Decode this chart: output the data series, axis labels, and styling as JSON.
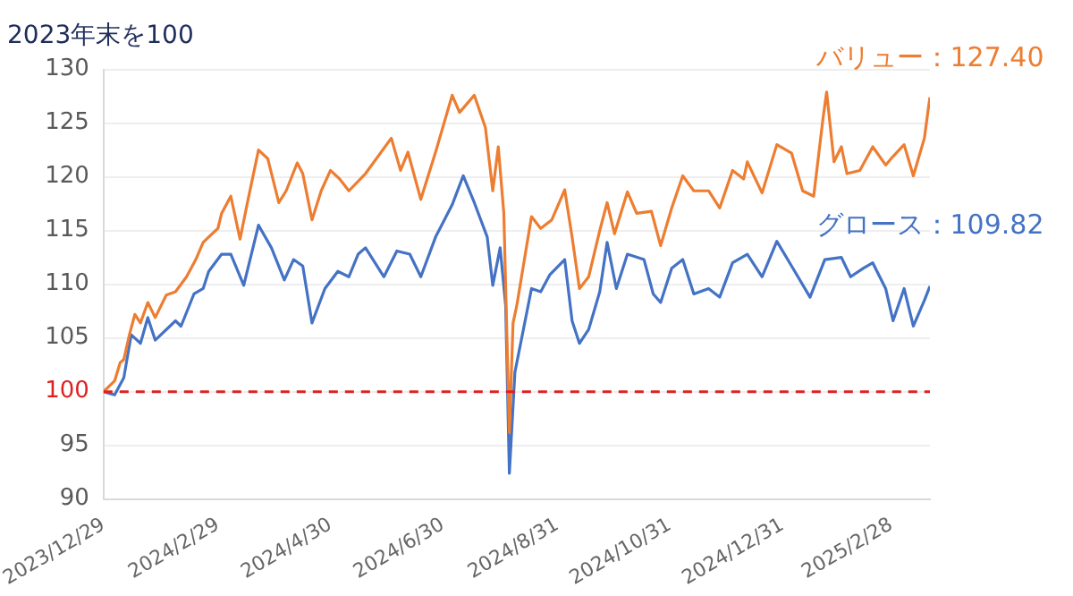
{
  "chart_data": {
    "type": "line",
    "title": "2023年末を100",
    "xlim": [
      "2023-12-29",
      "2025-03-21"
    ],
    "xticks": [
      {
        "value": "2023-12-29",
        "label": "2023/12/29"
      },
      {
        "value": "2024-02-29",
        "label": "2024/2/29"
      },
      {
        "value": "2024-04-30",
        "label": "2024/4/30"
      },
      {
        "value": "2024-06-30",
        "label": "2024/6/30"
      },
      {
        "value": "2024-08-31",
        "label": "2024/8/31"
      },
      {
        "value": "2024-10-31",
        "label": "2024/10/31"
      },
      {
        "value": "2024-12-31",
        "label": "2024/12/31"
      },
      {
        "value": "2025-02-28",
        "label": "2025/2/28"
      }
    ],
    "ylim": [
      90,
      130
    ],
    "yticks": [
      90,
      95,
      100,
      105,
      110,
      115,
      120,
      125,
      130
    ],
    "grid": "y",
    "legend": false,
    "marker": "none",
    "line_style": "solid",
    "ref_lines": [
      {
        "axis": "y",
        "value": 100,
        "color": "#e02020",
        "line_style": "dashed"
      }
    ],
    "series": [
      {
        "color": "#ed7d31",
        "x": [
          "2023-12-29",
          "2024-01-04",
          "2024-01-07",
          "2024-01-09",
          "2024-01-12",
          "2024-01-15",
          "2024-01-18",
          "2024-01-22",
          "2024-01-26",
          "2024-02-01",
          "2024-02-06",
          "2024-02-12",
          "2024-02-17",
          "2024-02-21",
          "2024-02-24",
          "2024-02-29",
          "2024-03-02",
          "2024-03-07",
          "2024-03-12",
          "2024-03-16",
          "2024-03-22",
          "2024-03-27",
          "2024-04-02",
          "2024-04-06",
          "2024-04-12",
          "2024-04-15",
          "2024-04-20",
          "2024-04-25",
          "2024-04-30",
          "2024-05-05",
          "2024-05-10",
          "2024-05-19",
          "2024-06-02",
          "2024-06-07",
          "2024-06-11",
          "2024-06-18",
          "2024-06-26",
          "2024-07-05",
          "2024-07-09",
          "2024-07-17",
          "2024-07-23",
          "2024-07-27",
          "2024-07-30",
          "2024-08-02",
          "2024-08-05",
          "2024-08-07",
          "2024-08-09",
          "2024-08-17",
          "2024-08-22",
          "2024-08-28",
          "2024-09-04",
          "2024-09-08",
          "2024-09-12",
          "2024-09-17",
          "2024-09-23",
          "2024-09-27",
          "2024-10-01",
          "2024-10-08",
          "2024-10-13",
          "2024-10-21",
          "2024-10-26",
          "2024-11-01",
          "2024-11-07",
          "2024-11-13",
          "2024-11-21",
          "2024-11-27",
          "2024-12-04",
          "2024-12-10",
          "2024-12-12",
          "2024-12-20",
          "2024-12-28",
          "2025-01-05",
          "2025-01-11",
          "2025-01-17",
          "2025-01-22",
          "2025-01-24",
          "2025-01-28",
          "2025-02-01",
          "2025-02-04",
          "2025-02-11",
          "2025-02-18",
          "2025-02-25",
          "2025-03-01",
          "2025-03-07",
          "2025-03-12",
          "2025-03-18",
          "2025-03-20",
          "2025-03-21"
        ],
        "values": [
          100,
          101,
          102.7,
          103,
          105.3,
          107.2,
          106.4,
          108.3,
          106.9,
          109,
          109.3,
          110.7,
          112.3,
          113.9,
          114.4,
          115.2,
          116.6,
          118.2,
          114.2,
          117.6,
          122.5,
          121.7,
          117.6,
          118.7,
          121.3,
          120.3,
          116,
          118.7,
          120.6,
          119.8,
          118.7,
          120.3,
          123.6,
          120.6,
          122.3,
          117.9,
          122.3,
          127.6,
          126,
          127.6,
          124.6,
          118.7,
          122.8,
          116.6,
          96.2,
          106.4,
          108,
          116.3,
          115.2,
          116,
          118.8,
          114.4,
          109.6,
          110.7,
          115,
          117.6,
          114.7,
          118.6,
          116.6,
          116.8,
          113.6,
          117.1,
          120.1,
          118.7,
          118.7,
          117.1,
          120.6,
          119.8,
          121.4,
          118.5,
          123,
          122.2,
          118.7,
          118.2,
          125.4,
          127.9,
          121.4,
          122.8,
          120.3,
          120.6,
          122.8,
          121.1,
          121.9,
          123,
          120.1,
          123.6,
          126.2,
          127.4
        ]
      },
      {
        "color": "#4472c4",
        "x": [
          "2023-12-29",
          "2024-01-04",
          "2024-01-09",
          "2024-01-13",
          "2024-01-18",
          "2024-01-22",
          "2024-01-26",
          "2024-02-06",
          "2024-02-09",
          "2024-02-16",
          "2024-02-21",
          "2024-02-24",
          "2024-03-02",
          "2024-03-07",
          "2024-03-14",
          "2024-03-22",
          "2024-03-29",
          "2024-04-05",
          "2024-04-10",
          "2024-04-15",
          "2024-04-20",
          "2024-04-27",
          "2024-05-04",
          "2024-05-10",
          "2024-05-15",
          "2024-05-19",
          "2024-05-29",
          "2024-06-05",
          "2024-06-12",
          "2024-06-18",
          "2024-06-26",
          "2024-07-05",
          "2024-07-11",
          "2024-07-17",
          "2024-07-24",
          "2024-07-27",
          "2024-07-31",
          "2024-08-03",
          "2024-08-05",
          "2024-08-08",
          "2024-08-17",
          "2024-08-22",
          "2024-08-27",
          "2024-09-04",
          "2024-09-08",
          "2024-09-12",
          "2024-09-17",
          "2024-09-23",
          "2024-09-27",
          "2024-10-02",
          "2024-10-08",
          "2024-10-17",
          "2024-10-22",
          "2024-10-26",
          "2024-11-01",
          "2024-11-07",
          "2024-11-13",
          "2024-11-21",
          "2024-11-27",
          "2024-12-04",
          "2024-12-12",
          "2024-12-20",
          "2024-12-28",
          "2025-01-05",
          "2025-01-15",
          "2025-01-23",
          "2025-02-01",
          "2025-02-06",
          "2025-02-13",
          "2025-02-18",
          "2025-02-25",
          "2025-03-01",
          "2025-03-07",
          "2025-03-12",
          "2025-03-18",
          "2025-03-21"
        ],
        "values": [
          100,
          99.7,
          101.3,
          105.3,
          104.5,
          106.9,
          104.8,
          106.6,
          106.1,
          109.1,
          109.6,
          111.2,
          112.8,
          112.8,
          109.9,
          115.5,
          113.4,
          110.4,
          112.3,
          111.7,
          106.4,
          109.6,
          111.2,
          110.7,
          112.8,
          113.4,
          110.7,
          113.1,
          112.8,
          110.7,
          114.4,
          117.4,
          120.1,
          117.6,
          114.4,
          109.9,
          113.4,
          108,
          92.4,
          101.8,
          109.6,
          109.3,
          110.9,
          112.3,
          106.6,
          104.5,
          105.8,
          109.3,
          113.9,
          109.6,
          112.8,
          112.3,
          109.1,
          108.3,
          111.5,
          112.3,
          109.1,
          109.6,
          108.8,
          112,
          112.8,
          110.7,
          114,
          111.7,
          108.8,
          112.3,
          112.5,
          110.7,
          111.5,
          112,
          109.6,
          106.6,
          109.6,
          106.1,
          108.5,
          109.82
        ]
      }
    ],
    "annotations": [
      {
        "text": "バリュー：127.40",
        "x": "2025-03-21",
        "y": 127.4
      },
      {
        "text": "グロース：109.82",
        "x": "2025-03-21",
        "y": 109.82
      }
    ]
  }
}
